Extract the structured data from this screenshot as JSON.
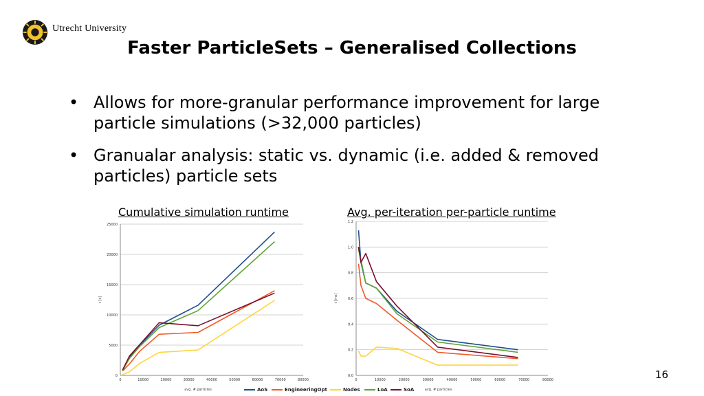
{
  "header": {
    "logo_text": "Utrecht University",
    "title": "Faster ParticleSets – Generalised Collections"
  },
  "bullets": [
    "Allows for more-granular performance improvement for large particle simulations (>32,000 particles)",
    "Granualar analysis: static vs. dynamic (i.e. added & removed particles) particle sets"
  ],
  "page_number": "16",
  "colors": {
    "AoS": "#1f4e8c",
    "EngineeringOpt": "#f05a28",
    "Nodes": "#ffd43b",
    "LoA": "#5ea234",
    "SoA": "#7a0f2e"
  },
  "chart_data": [
    {
      "type": "line",
      "title": "Cumulative simulation runtime",
      "xlabel": "avg. # particles",
      "ylabel": "t [s]",
      "xlim": [
        0,
        80000
      ],
      "ylim": [
        0,
        25000
      ],
      "xticks": [
        0,
        10000,
        20000,
        30000,
        40000,
        50000,
        60000,
        70000,
        80000
      ],
      "yticks": [
        0,
        5000,
        10000,
        15000,
        20000,
        25000
      ],
      "grid": true,
      "legend": "bottom",
      "series": [
        {
          "name": "AoS",
          "x": [
            1000,
            4000,
            8500,
            17000,
            34000,
            67500
          ],
          "y": [
            800,
            3000,
            5000,
            8300,
            11600,
            23700
          ]
        },
        {
          "name": "EngineeringOpt",
          "x": [
            1000,
            4000,
            8500,
            17000,
            34000,
            67500
          ],
          "y": [
            700,
            1900,
            4000,
            6800,
            7100,
            14000
          ]
        },
        {
          "name": "Nodes",
          "x": [
            1000,
            4000,
            8500,
            17000,
            34000,
            67500
          ],
          "y": [
            100,
            600,
            2000,
            3800,
            4200,
            12400
          ]
        },
        {
          "name": "LoA",
          "x": [
            1000,
            4000,
            8500,
            17000,
            34000,
            67500
          ],
          "y": [
            800,
            2800,
            4800,
            7900,
            10700,
            22100
          ]
        },
        {
          "name": "SoA",
          "x": [
            1000,
            4000,
            8500,
            17000,
            34000,
            67500
          ],
          "y": [
            900,
            3200,
            5100,
            8700,
            8200,
            13600
          ]
        }
      ]
    },
    {
      "type": "line",
      "title": "Avg. per-iteration per-particle runtime",
      "xlabel": "avg. # particles",
      "ylabel": "t [ms]",
      "xlim": [
        0,
        80000
      ],
      "ylim": [
        0,
        1.2
      ],
      "xticks": [
        0,
        10000,
        20000,
        30000,
        40000,
        50000,
        60000,
        70000,
        80000
      ],
      "yticks": [
        0.0,
        0.2,
        0.4,
        0.6,
        0.8,
        1.0,
        1.2
      ],
      "grid": true,
      "legend": "bottom",
      "series": [
        {
          "name": "AoS",
          "x": [
            1000,
            2000,
            4000,
            8500,
            17000,
            34000,
            67500
          ],
          "y": [
            1.13,
            0.88,
            0.72,
            0.68,
            0.5,
            0.28,
            0.2
          ]
        },
        {
          "name": "EngineeringOpt",
          "x": [
            1000,
            2000,
            4000,
            8500,
            17000,
            34000,
            67500
          ],
          "y": [
            0.87,
            0.7,
            0.6,
            0.56,
            0.43,
            0.18,
            0.13
          ]
        },
        {
          "name": "Nodes",
          "x": [
            1000,
            2000,
            4000,
            8500,
            17000,
            34000,
            67500
          ],
          "y": [
            0.19,
            0.15,
            0.15,
            0.22,
            0.21,
            0.08,
            0.08
          ]
        },
        {
          "name": "LoA",
          "x": [
            1000,
            2000,
            4000,
            8500,
            17000,
            34000,
            67500
          ],
          "y": [
            0.98,
            0.9,
            0.72,
            0.68,
            0.48,
            0.26,
            0.18
          ]
        },
        {
          "name": "SoA",
          "x": [
            1000,
            2000,
            4000,
            8500,
            17000,
            34000,
            67500
          ],
          "y": [
            1.0,
            0.88,
            0.95,
            0.73,
            0.54,
            0.22,
            0.14
          ]
        }
      ]
    }
  ]
}
